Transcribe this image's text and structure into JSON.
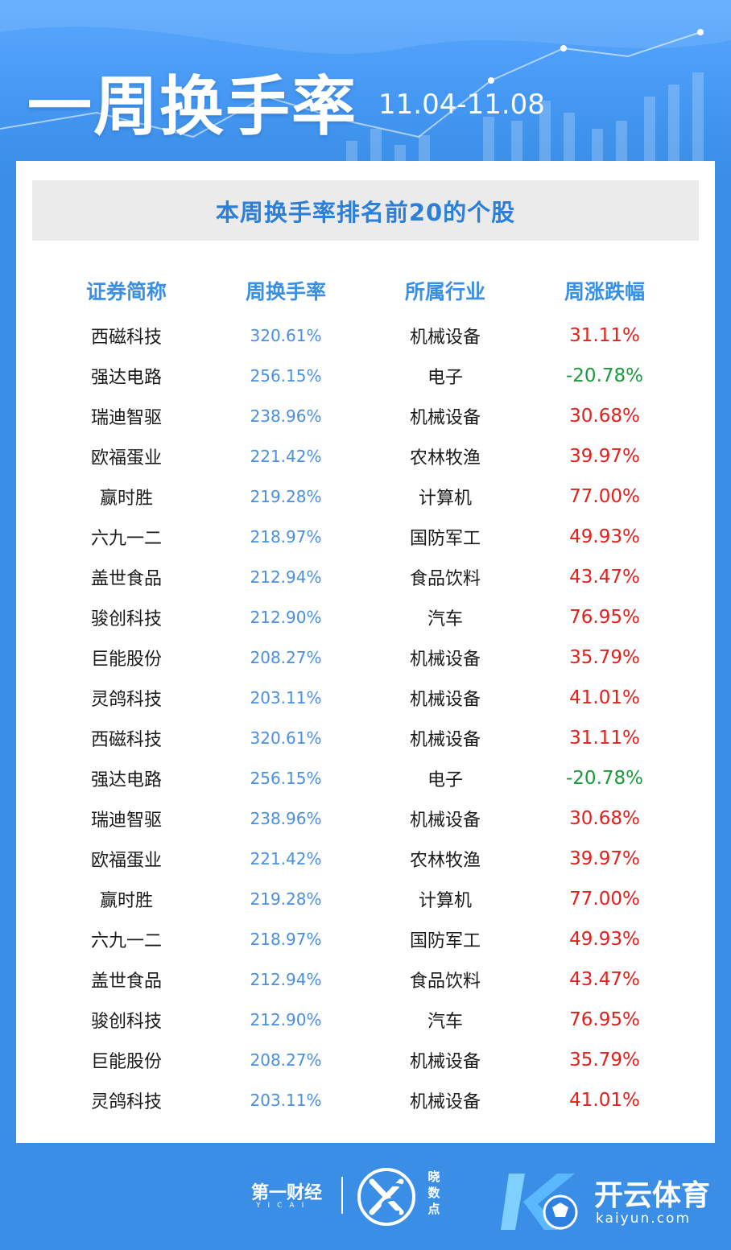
{
  "header": {
    "title": "一周换手率",
    "date_range": "11.04-11.08"
  },
  "card": {
    "title": "本周换手率排名前20的个股",
    "columns": [
      "证券简称",
      "周换手率",
      "所属行业",
      "周涨跌幅"
    ],
    "rows": [
      {
        "name": "西磁科技",
        "turnover": "320.61%",
        "industry": "机械设备",
        "change": "31.11%"
      },
      {
        "name": "强达电路",
        "turnover": "256.15%",
        "industry": "电子",
        "change": "-20.78%"
      },
      {
        "name": "瑞迪智驱",
        "turnover": "238.96%",
        "industry": "机械设备",
        "change": "30.68%"
      },
      {
        "name": "欧福蛋业",
        "turnover": "221.42%",
        "industry": "农林牧渔",
        "change": "39.97%"
      },
      {
        "name": "赢时胜",
        "turnover": "219.28%",
        "industry": "计算机",
        "change": "77.00%"
      },
      {
        "name": "六九一二",
        "turnover": "218.97%",
        "industry": "国防军工",
        "change": "49.93%"
      },
      {
        "name": "盖世食品",
        "turnover": "212.94%",
        "industry": "食品饮料",
        "change": "43.47%"
      },
      {
        "name": "骏创科技",
        "turnover": "212.90%",
        "industry": "汽车",
        "change": "76.95%"
      },
      {
        "name": "巨能股份",
        "turnover": "208.27%",
        "industry": "机械设备",
        "change": "35.79%"
      },
      {
        "name": "灵鸽科技",
        "turnover": "203.11%",
        "industry": "机械设备",
        "change": "41.01%"
      },
      {
        "name": "西磁科技",
        "turnover": "320.61%",
        "industry": "机械设备",
        "change": "31.11%"
      },
      {
        "name": "强达电路",
        "turnover": "256.15%",
        "industry": "电子",
        "change": "-20.78%"
      },
      {
        "name": "瑞迪智驱",
        "turnover": "238.96%",
        "industry": "机械设备",
        "change": "30.68%"
      },
      {
        "name": "欧福蛋业",
        "turnover": "221.42%",
        "industry": "农林牧渔",
        "change": "39.97%"
      },
      {
        "name": "赢时胜",
        "turnover": "219.28%",
        "industry": "计算机",
        "change": "77.00%"
      },
      {
        "name": "六九一二",
        "turnover": "218.97%",
        "industry": "国防军工",
        "change": "49.93%"
      },
      {
        "name": "盖世食品",
        "turnover": "212.94%",
        "industry": "食品饮料",
        "change": "43.47%"
      },
      {
        "name": "骏创科技",
        "turnover": "212.90%",
        "industry": "汽车",
        "change": "76.95%"
      },
      {
        "name": "巨能股份",
        "turnover": "208.27%",
        "industry": "机械设备",
        "change": "35.79%"
      },
      {
        "name": "灵鸽科技",
        "turnover": "203.11%",
        "industry": "机械设备",
        "change": "41.01%"
      }
    ]
  },
  "colors": {
    "background": "#3b8ee6",
    "header_accent": "#2b7fd9",
    "turnover": "#4a8fe0",
    "up": "#e3201b",
    "down": "#1a9a3a"
  },
  "footer": {
    "yicai_logo": "第一财经",
    "yicai_sub": "YICAI",
    "xiaoshudian_logo": "晓数点",
    "kaiyun_name": "开云体育",
    "kaiyun_url": "kaiyun.com"
  },
  "icons": [
    "xiaoshudian-logo-icon",
    "kaiyun-logo-icon"
  ]
}
